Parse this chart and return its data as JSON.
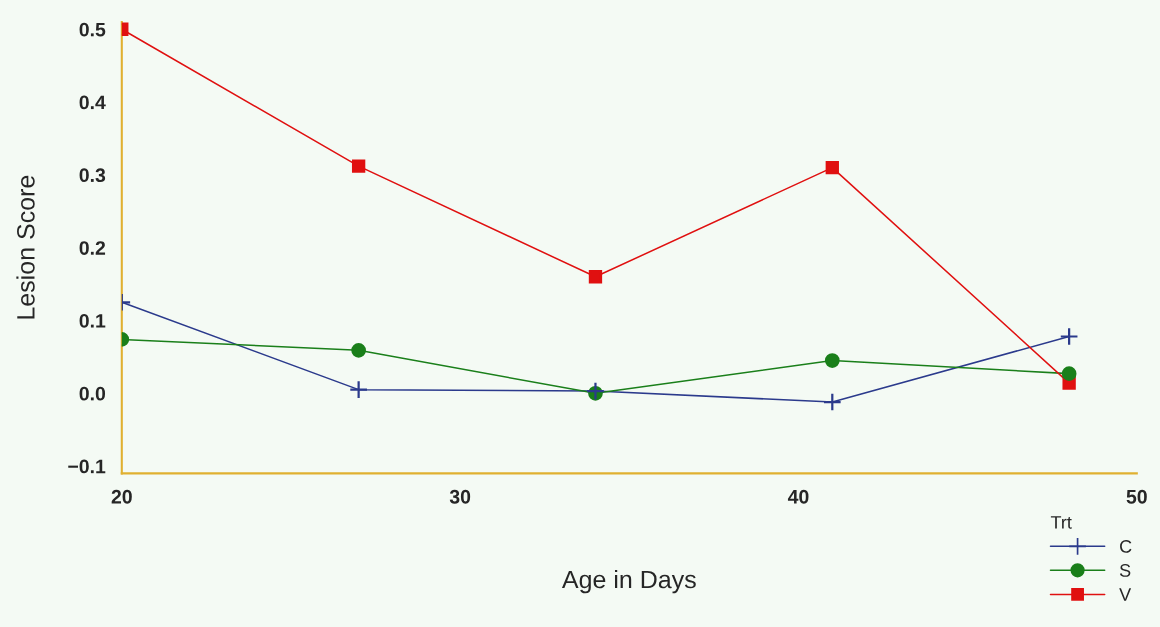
{
  "chart_data": {
    "type": "line",
    "xlabel": "Age in Days",
    "ylabel": "Lesion Score",
    "legend_title": "Trt",
    "x": [
      20,
      27,
      34,
      41,
      48
    ],
    "series": [
      {
        "name": "C",
        "color": "#2b3a8c",
        "marker": "cross",
        "values": [
          0.125,
          0.005,
          0.003,
          -0.012,
          0.078
        ]
      },
      {
        "name": "S",
        "color": "#1a7f1a",
        "marker": "circle",
        "values": [
          0.074,
          0.059,
          0.0,
          0.045,
          0.027
        ]
      },
      {
        "name": "V",
        "color": "#e01010",
        "marker": "square",
        "values": [
          0.5,
          0.312,
          0.16,
          0.31,
          0.014
        ]
      }
    ],
    "xlim": [
      20,
      50
    ],
    "xticks": [
      20,
      30,
      40,
      50
    ],
    "ylim": [
      -0.11,
      0.51
    ],
    "yticks": [
      {
        "value": -0.1,
        "label": "−0.1"
      },
      {
        "value": 0.0,
        "label": "0.0"
      },
      {
        "value": 0.1,
        "label": "0.1"
      },
      {
        "value": 0.2,
        "label": "0.2"
      },
      {
        "value": 0.3,
        "label": "0.3"
      },
      {
        "value": 0.4,
        "label": "0.4"
      },
      {
        "value": 0.5,
        "label": "0.5"
      }
    ],
    "grid": false,
    "legend": "bottom right"
  }
}
